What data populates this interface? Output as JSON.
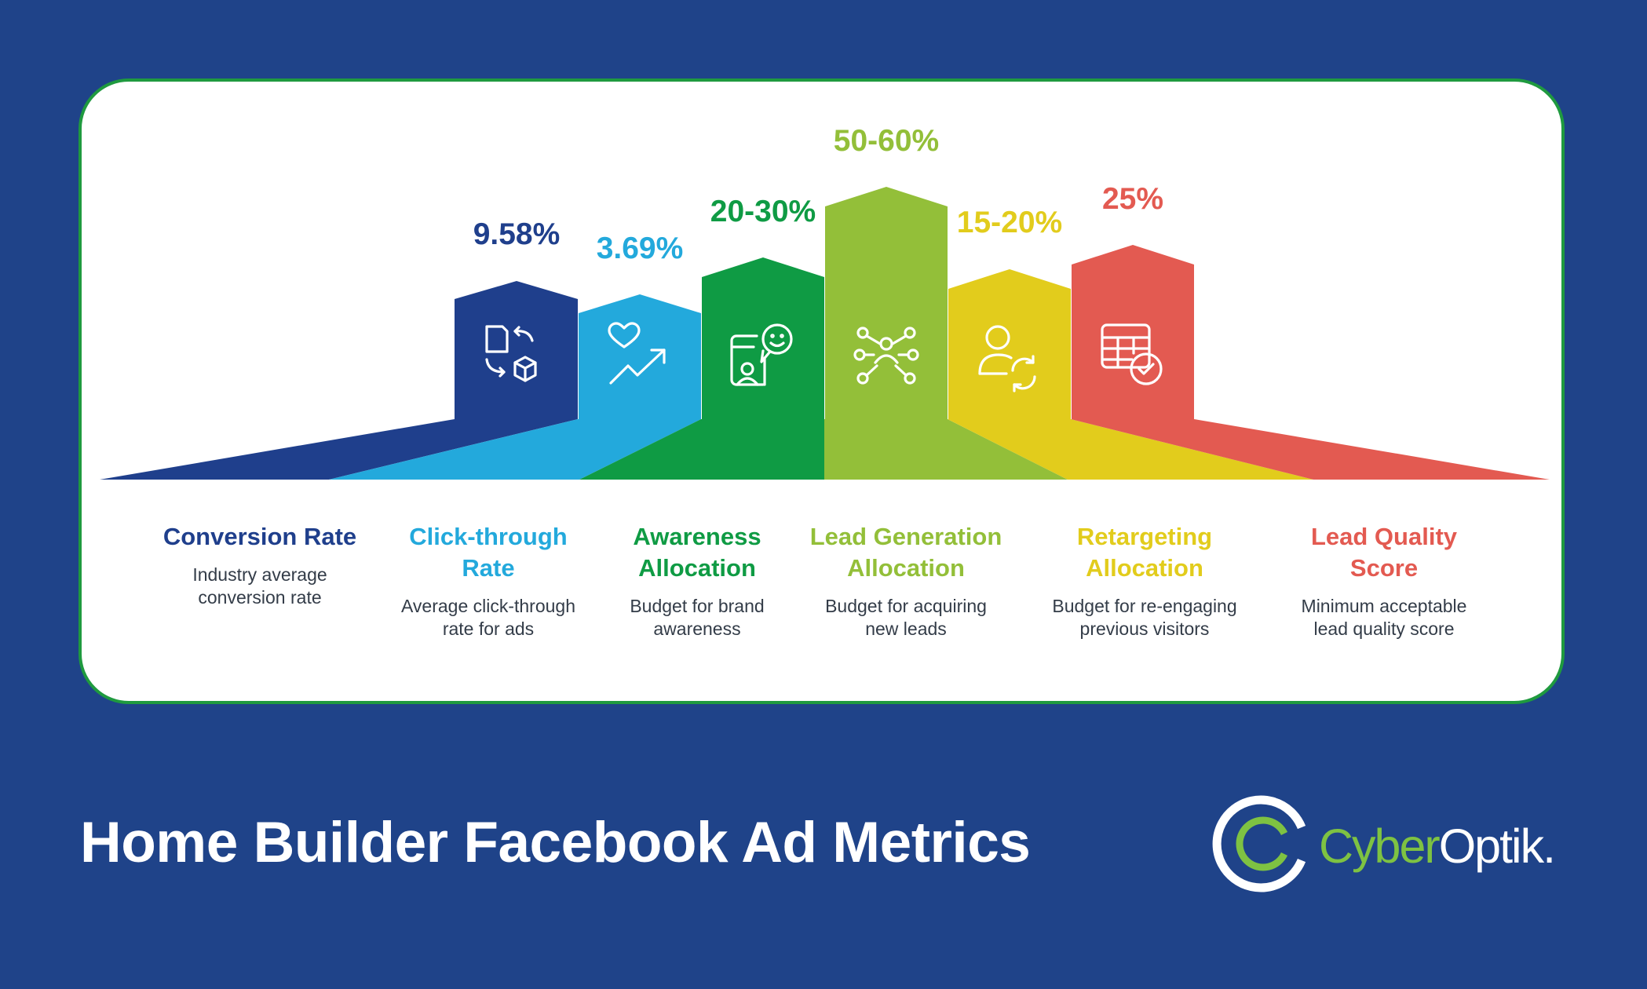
{
  "title": "Home Builder Facebook Ad Metrics",
  "brand": {
    "name_part1": "Cyber",
    "name_part2": "Optik",
    "suffix": ".",
    "colors": {
      "green": "#7ec242",
      "white": "#ffffff"
    }
  },
  "colors": {
    "background": "#1f4389",
    "card_border": "#1f9a3f"
  },
  "metrics": [
    {
      "value": "9.58%",
      "title_lines": [
        "Conversion Rate"
      ],
      "desc_lines": [
        "Industry average",
        "conversion rate"
      ],
      "color": "#1f3f8c",
      "icon": "document-to-box-icon"
    },
    {
      "value": "3.69%",
      "title_lines": [
        "Click-through",
        "Rate"
      ],
      "desc_lines": [
        "Average click-through",
        "rate for ads"
      ],
      "color": "#23a9dc",
      "icon": "heart-trend-up-icon"
    },
    {
      "value": "20-30%",
      "title_lines": [
        "Awareness",
        "Allocation"
      ],
      "desc_lines": [
        "Budget for brand",
        "awareness"
      ],
      "color": "#0f9b44",
      "icon": "smartphone-smiley-icon"
    },
    {
      "value": "50-60%",
      "title_lines": [
        "Lead Generation",
        "Allocation"
      ],
      "desc_lines": [
        "Budget for acquiring",
        "new leads"
      ],
      "color": "#93bf39",
      "icon": "network-people-icon"
    },
    {
      "value": "15-20%",
      "title_lines": [
        "Retargeting",
        "Allocation"
      ],
      "desc_lines": [
        "Budget for re-engaging",
        "previous visitors"
      ],
      "color": "#e2cc1c",
      "icon": "user-refresh-icon"
    },
    {
      "value": "25%",
      "title_lines": [
        "Lead Quality",
        "Score"
      ],
      "desc_lines": [
        "Minimum acceptable",
        "lead quality score"
      ],
      "color": "#e35a51",
      "icon": "table-check-icon"
    }
  ]
}
